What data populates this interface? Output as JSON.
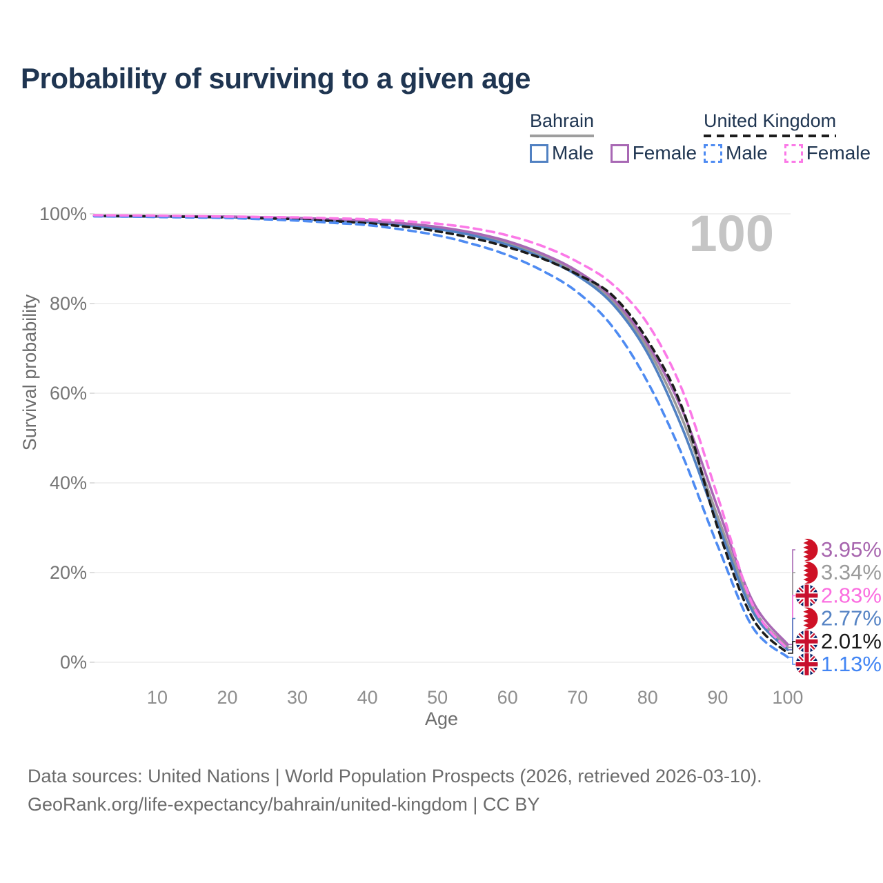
{
  "title": "Probability of surviving to a given age",
  "legend": {
    "groups": [
      {
        "label": "Bahrain",
        "underline_style": "solid",
        "underline_color": "#9e9e9e",
        "items": [
          {
            "label": "Male",
            "color": "#5181c2",
            "dash": false
          },
          {
            "label": "Female",
            "color": "#a868b4",
            "dash": false
          }
        ]
      },
      {
        "label": "United Kingdom",
        "underline_style": "dashed",
        "underline_color": "#1c1c1c",
        "items": [
          {
            "label": "Male",
            "color": "#4e8bf2",
            "dash": true
          },
          {
            "label": "Female",
            "color": "#fb79e7",
            "dash": true
          }
        ]
      }
    ]
  },
  "chart_data": {
    "type": "line",
    "title": "Probability of surviving to a given age",
    "xlabel": "Age",
    "ylabel": "Survival probability",
    "xlim": [
      1,
      100
    ],
    "ylim": [
      0,
      100
    ],
    "grid": "horizontal-only",
    "legend_position": "top-right",
    "age_watermark": "100",
    "x_ticks": [
      10,
      20,
      30,
      40,
      50,
      60,
      70,
      80,
      90,
      100
    ],
    "y_ticks": [
      {
        "pct": 0,
        "label": "0%"
      },
      {
        "pct": 20,
        "label": "20%"
      },
      {
        "pct": 40,
        "label": "40%"
      },
      {
        "pct": 60,
        "label": "60%"
      },
      {
        "pct": 80,
        "label": "80%"
      },
      {
        "pct": 100,
        "label": "100%"
      }
    ],
    "x": [
      1,
      5,
      10,
      15,
      20,
      25,
      30,
      35,
      40,
      45,
      50,
      55,
      60,
      65,
      70,
      75,
      80,
      85,
      90,
      95,
      100
    ],
    "series": [
      {
        "id": "bahrain-total",
        "name": "Bahrain",
        "country": "Bahrain",
        "sex": "both",
        "color": "#9a9a9a",
        "dash": false,
        "values": [
          99.55,
          99.5,
          99.45,
          99.4,
          99.3,
          99.15,
          99.0,
          98.65,
          98.3,
          97.7,
          96.9,
          95.5,
          93.5,
          90.7,
          86.8,
          80.6,
          70.0,
          54.0,
          32.5,
          12.3,
          3.34
        ]
      },
      {
        "id": "bahrain-male",
        "name": "Bahrain Male",
        "country": "Bahrain",
        "sex": "male",
        "color": "#5181c2",
        "dash": false,
        "values": [
          99.5,
          99.45,
          99.4,
          99.35,
          99.25,
          99.05,
          98.9,
          98.5,
          98.2,
          97.5,
          96.6,
          95.2,
          93.1,
          90.2,
          86.2,
          79.9,
          68.9,
          52.0,
          31.0,
          11.3,
          2.77
        ]
      },
      {
        "id": "bahrain-female",
        "name": "Bahrain Female",
        "country": "Bahrain",
        "sex": "female",
        "color": "#a868b4",
        "dash": false,
        "values": [
          99.6,
          99.55,
          99.5,
          99.45,
          99.4,
          99.25,
          99.1,
          98.8,
          98.5,
          97.9,
          97.1,
          95.8,
          93.9,
          91.1,
          87.2,
          81.2,
          71.0,
          56.0,
          34.5,
          13.6,
          3.95
        ]
      },
      {
        "id": "uk-total",
        "name": "United Kingdom",
        "country": "United Kingdom",
        "sex": "both",
        "color": "#1c1c1c",
        "dash": true,
        "dash_pattern": "9 7",
        "values": [
          99.55,
          99.5,
          99.45,
          99.35,
          99.2,
          99.0,
          98.8,
          98.4,
          97.9,
          97.2,
          96.1,
          94.6,
          92.6,
          90.0,
          86.5,
          81.8,
          71.8,
          56.5,
          30.0,
          9.8,
          2.01
        ]
      },
      {
        "id": "uk-male",
        "name": "United Kingdom Male",
        "country": "United Kingdom",
        "sex": "male",
        "color": "#4e8bf2",
        "dash": true,
        "dash_pattern": "11 8",
        "values": [
          99.45,
          99.4,
          99.3,
          99.2,
          99.1,
          98.8,
          98.5,
          98.0,
          97.5,
          96.5,
          95.2,
          93.3,
          90.8,
          87.3,
          82.5,
          74.8,
          62.5,
          46.0,
          26.0,
          7.8,
          1.13
        ]
      },
      {
        "id": "uk-female",
        "name": "United Kingdom Female",
        "country": "United Kingdom",
        "sex": "female",
        "color": "#fb79e7",
        "dash": true,
        "dash_pattern": "11 8",
        "values": [
          99.7,
          99.65,
          99.6,
          99.5,
          99.4,
          99.3,
          99.2,
          99.0,
          98.8,
          98.4,
          97.8,
          96.8,
          95.2,
          92.8,
          89.3,
          84.3,
          75.5,
          60.5,
          37.0,
          12.8,
          2.83
        ]
      }
    ],
    "end_labels": [
      {
        "text": "3.95%",
        "series": "Bahrain Female",
        "flag": "bahrain",
        "color": "#a765ae"
      },
      {
        "text": "3.34%",
        "series": "Bahrain",
        "flag": "bahrain",
        "color": "#9b9b9b"
      },
      {
        "text": "2.83%",
        "series": "United Kingdom Female",
        "flag": "uk",
        "color": "#fb6ee0"
      },
      {
        "text": "2.77%",
        "series": "Bahrain Male",
        "flag": "bahrain",
        "color": "#5583c4"
      },
      {
        "text": "2.01%",
        "series": "United Kingdom",
        "flag": "uk",
        "color": "#1a1a1a"
      },
      {
        "text": "1.13%",
        "series": "United Kingdom Male",
        "flag": "uk",
        "color": "#4285f4"
      }
    ]
  },
  "footer": {
    "line1": "Data sources: United Nations | World Population Prospects (2026, retrieved 2026-03-10).",
    "line2": "GeoRank.org/life-expectancy/bahrain/united-kingdom | CC BY"
  }
}
